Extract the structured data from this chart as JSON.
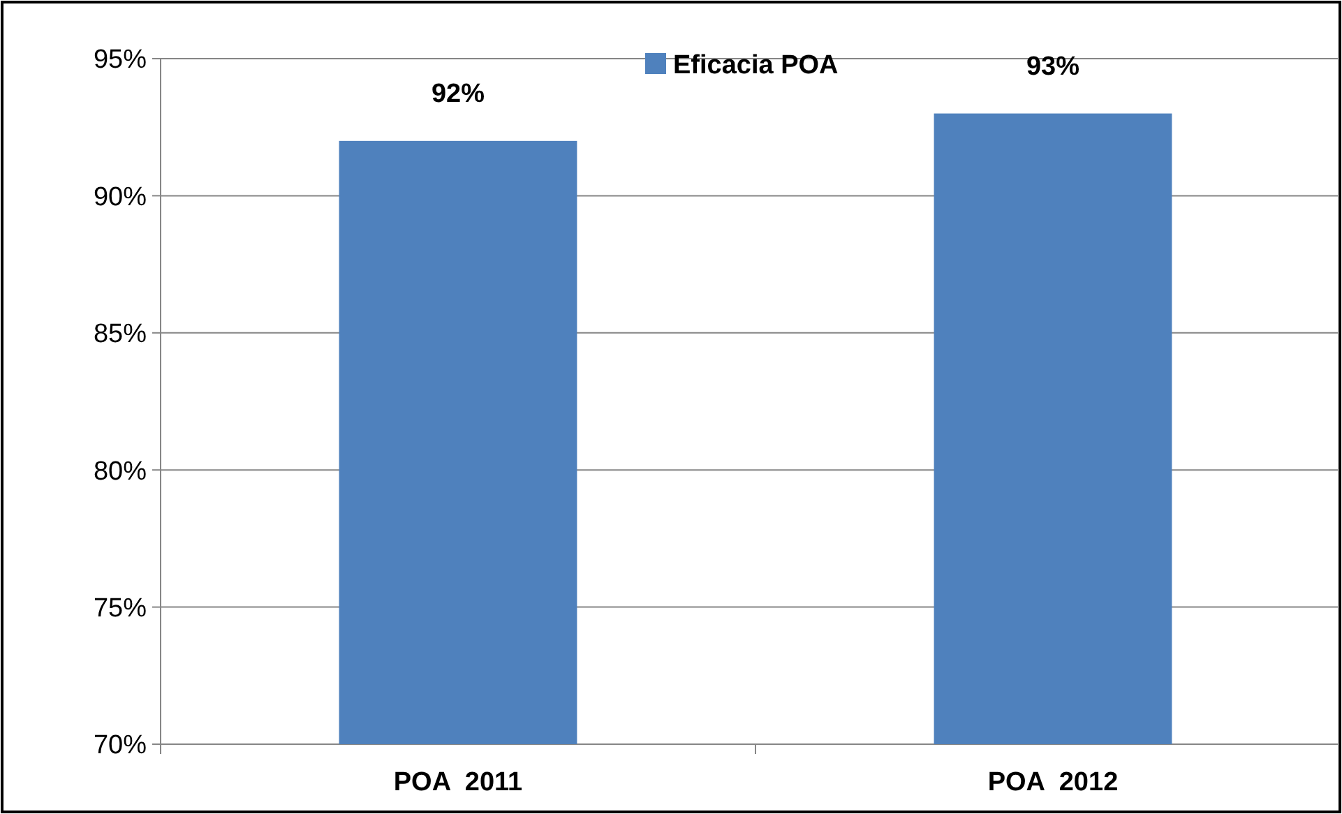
{
  "chart_data": {
    "type": "bar",
    "categories": [
      "POA  2011",
      "POA  2012"
    ],
    "series": [
      {
        "name": "Eficacia POA",
        "color": "#4f81bd",
        "values": [
          92,
          93
        ],
        "value_labels": [
          "92%",
          "93%"
        ]
      }
    ],
    "ylim": [
      70,
      95
    ],
    "yticks": [
      {
        "value": 70,
        "label": "70%"
      },
      {
        "value": 75,
        "label": "75%"
      },
      {
        "value": 80,
        "label": "80%"
      },
      {
        "value": 85,
        "label": "85%"
      },
      {
        "value": 90,
        "label": "90%"
      },
      {
        "value": 95,
        "label": "95%"
      }
    ],
    "grid": "y",
    "legend": "top"
  }
}
